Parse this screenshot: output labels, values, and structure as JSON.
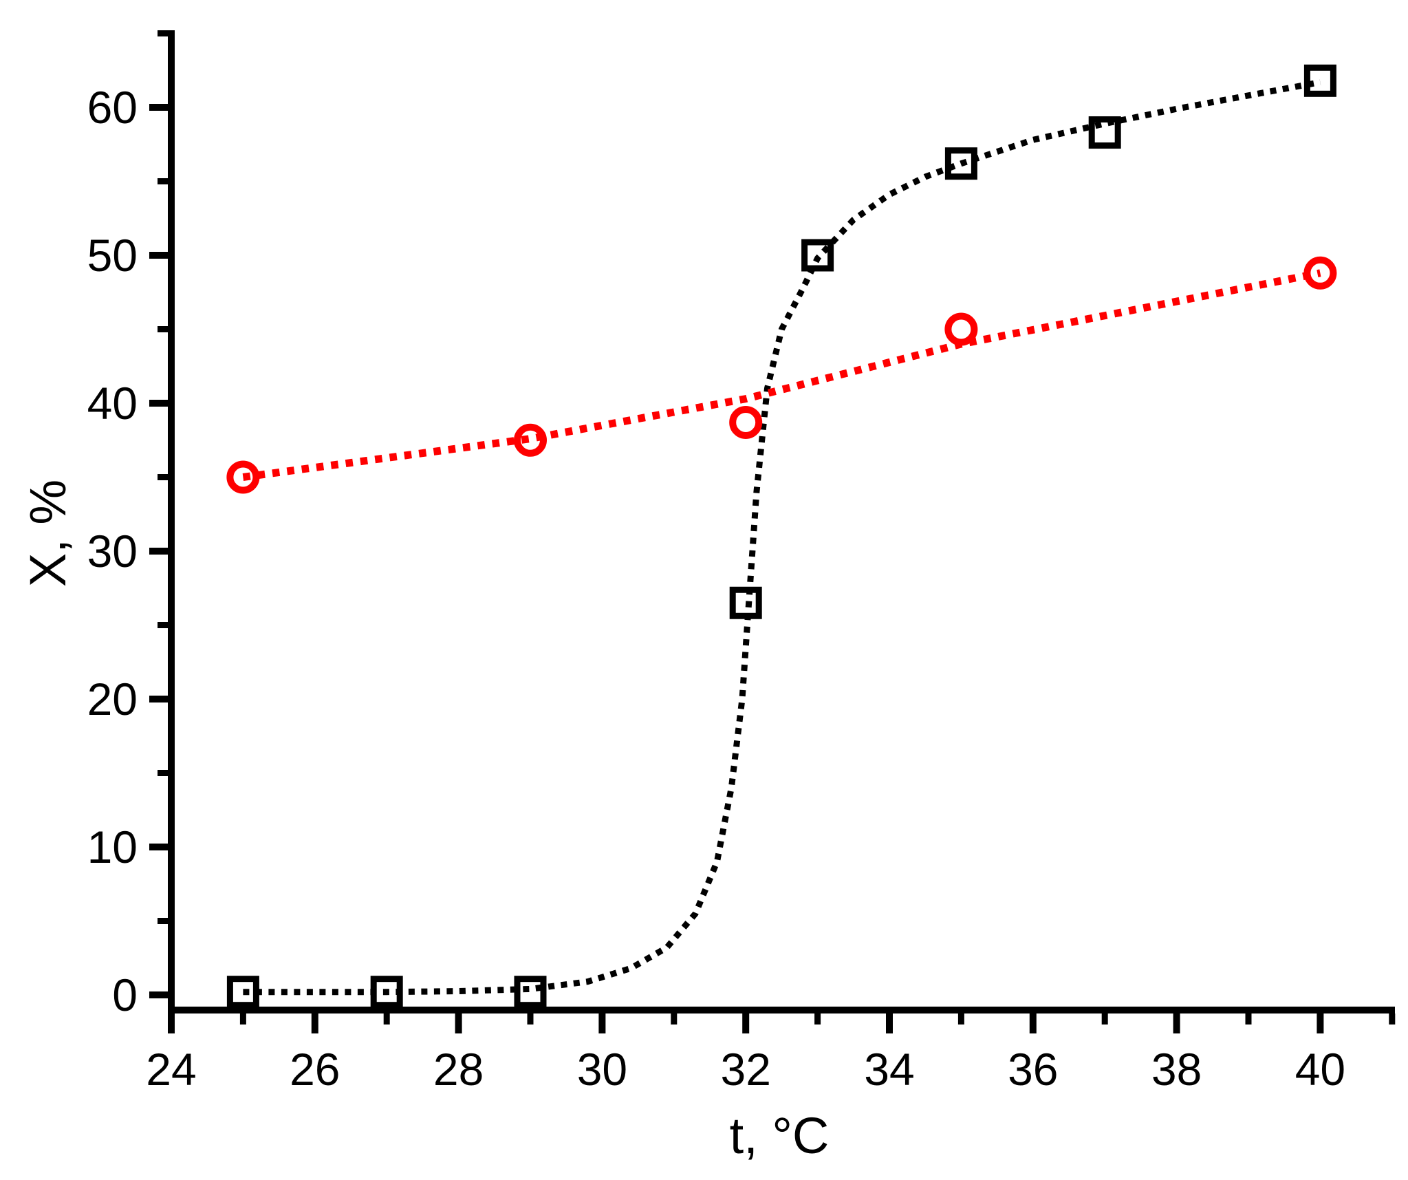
{
  "figure": {
    "background": "#ffffff",
    "axis_color": "#000000"
  },
  "chart_data": {
    "type": "scatter",
    "title": "",
    "xlabel": "t, °C",
    "ylabel": "X, %",
    "xlim": [
      24,
      41
    ],
    "ylim": [
      -1,
      65
    ],
    "grid": false,
    "legend": "none",
    "x_major_ticks": [
      24,
      26,
      28,
      30,
      32,
      34,
      36,
      38,
      40
    ],
    "x_minor_ticks": [
      25,
      27,
      29,
      31,
      33,
      35,
      37,
      39,
      41
    ],
    "y_major_ticks": [
      0,
      10,
      20,
      30,
      40,
      50,
      60
    ],
    "y_minor_ticks": [
      5,
      15,
      25,
      35,
      45,
      55,
      65
    ],
    "series": [
      {
        "name": "black-squares-sigmoidal",
        "marker": "open-square",
        "color": "#000000",
        "line_style": "dotted",
        "points": [
          [
            25,
            0.2
          ],
          [
            27,
            0.2
          ],
          [
            29,
            0.2
          ],
          [
            32,
            26.5
          ],
          [
            33,
            50.0
          ],
          [
            35,
            56.2
          ],
          [
            37,
            58.3
          ],
          [
            40,
            61.8
          ]
        ],
        "fit": [
          [
            25,
            0.2
          ],
          [
            26,
            0.2
          ],
          [
            27,
            0.2
          ],
          [
            28,
            0.25
          ],
          [
            29,
            0.4
          ],
          [
            29.8,
            0.9
          ],
          [
            30.4,
            1.8
          ],
          [
            30.9,
            3.2
          ],
          [
            31.3,
            5.5
          ],
          [
            31.6,
            9
          ],
          [
            31.8,
            14
          ],
          [
            31.95,
            20
          ],
          [
            32.05,
            27
          ],
          [
            32.15,
            34
          ],
          [
            32.3,
            41
          ],
          [
            32.5,
            45
          ],
          [
            32.8,
            47.8
          ],
          [
            33,
            49.8
          ],
          [
            33.5,
            52.4
          ],
          [
            34,
            54.1
          ],
          [
            34.5,
            55.3
          ],
          [
            35,
            56.2
          ],
          [
            36,
            57.8
          ],
          [
            37,
            58.9
          ],
          [
            38,
            59.9
          ],
          [
            39,
            60.8
          ],
          [
            40,
            61.7
          ]
        ]
      },
      {
        "name": "red-circles-linear",
        "marker": "open-circle",
        "color": "#fe0000",
        "line_style": "dotted",
        "points": [
          [
            25,
            35.0
          ],
          [
            29,
            37.5
          ],
          [
            32,
            38.7
          ],
          [
            35,
            45.0
          ],
          [
            40,
            48.8
          ]
        ],
        "fit": [
          [
            25,
            35.0
          ],
          [
            29,
            37.6
          ],
          [
            32,
            40.3
          ],
          [
            35,
            44.0
          ],
          [
            40,
            48.8
          ]
        ]
      }
    ]
  }
}
